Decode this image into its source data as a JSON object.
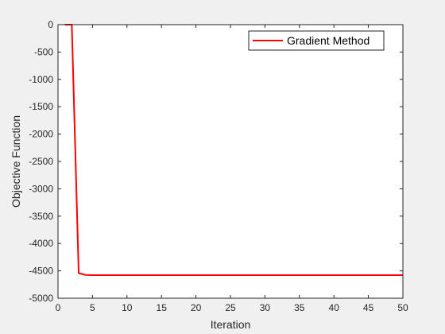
{
  "chart_data": {
    "type": "line",
    "title": "",
    "xlabel": "Iteration",
    "ylabel": "Objective Function",
    "xlim": [
      0,
      50
    ],
    "ylim": [
      -5000,
      0
    ],
    "xticks": [
      0,
      5,
      10,
      15,
      20,
      25,
      30,
      35,
      40,
      45,
      50
    ],
    "yticks": [
      0,
      -500,
      -1000,
      -1500,
      -2000,
      -2500,
      -3000,
      -3500,
      -4000,
      -4500,
      -5000
    ],
    "grid": false,
    "legend_position": "top-right",
    "series": [
      {
        "name": "Gradient Method",
        "color": "#ff0000",
        "x": [
          1,
          2,
          3,
          4,
          5,
          6,
          7,
          8,
          9,
          10,
          11,
          12,
          13,
          14,
          15,
          16,
          17,
          18,
          19,
          20,
          21,
          22,
          23,
          24,
          25,
          26,
          27,
          28,
          29,
          30,
          31,
          32,
          33,
          34,
          35,
          36,
          37,
          38,
          39,
          40,
          41,
          42,
          43,
          44,
          45,
          46,
          47,
          48,
          49,
          50
        ],
        "y": [
          0,
          0,
          -4540,
          -4575,
          -4578,
          -4578,
          -4578,
          -4578,
          -4578,
          -4578,
          -4578,
          -4578,
          -4578,
          -4578,
          -4578,
          -4578,
          -4578,
          -4578,
          -4578,
          -4578,
          -4578,
          -4578,
          -4578,
          -4578,
          -4578,
          -4578,
          -4578,
          -4578,
          -4578,
          -4578,
          -4578,
          -4578,
          -4578,
          -4578,
          -4578,
          -4578,
          -4578,
          -4578,
          -4578,
          -4578,
          -4578,
          -4578,
          -4578,
          -4578,
          -4578,
          -4578,
          -4578,
          -4578,
          -4578,
          -4578
        ]
      }
    ]
  }
}
